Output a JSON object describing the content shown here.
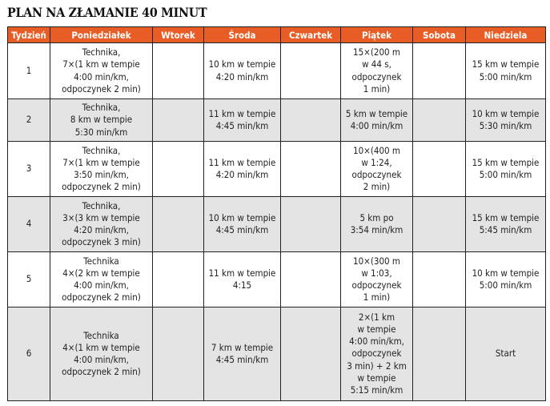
{
  "title": "PLAN NA ZŁAMANIE 40 MINUT",
  "accent_color": "#e85d26",
  "headers": [
    "Tydzień",
    "Poniedziałek",
    "Wtorek",
    "Środa",
    "Czwartek",
    "Piątek",
    "Sobota",
    "Niedziela"
  ],
  "rows": [
    [
      "1",
      "Technika,\n7×(1 km w tempie\n4:00 min/km,\nodpoczynek 2 min)",
      "",
      "10 km w tempie\n4:20 min/km",
      "",
      "15×(200 m\nw 44 s,\nodpoczynek\n1 min)",
      "",
      "15 km w tempie\n5:00 min/km"
    ],
    [
      "2",
      "Technika,\n8 km w tempie\n5:30 min/km",
      "",
      "11 km w tempie\n4:45 min/km",
      "",
      "5 km w tempie\n4:00 min/km",
      "",
      "10 km w tempie\n5:30 min/km"
    ],
    [
      "3",
      "Technika,\n7×(1 km w tempie\n3:50 min/km,\nodpoczynek 2 min)",
      "",
      "11 km w tempie\n4:20 min/km",
      "",
      "10×(400 m\nw 1:24,\nodpoczynek\n2 min)",
      "",
      "15 km w tempie\n5:00 min/km"
    ],
    [
      "4",
      "Technika,\n3×(3 km w tempie\n4:20 min/km,\nodpoczynek 3 min)",
      "",
      "10 km w tempie\n4:45 min/km",
      "",
      "5 km po\n3:54 min/km",
      "",
      "15 km w tempie\n5:45 min/km"
    ],
    [
      "5",
      "Technika\n4×(2 km w tempie\n4:00 min/km,\nodpoczynek 2 min)",
      "",
      "11 km w tempie\n4:15",
      "",
      "10×(300 m\nw 1:03,\nodpoczynek\n1 min)",
      "",
      "10 km w tempie\n5:00 min/km"
    ],
    [
      "6",
      "Technika\n4×(1 km w tempie\n4:00 min/km,\nodpoczynek 2 min)",
      "",
      "7 km w tempie\n4:45 min/km",
      "",
      "2×(1 km\nw tempie\n4:00 min/km,\nodpoczynek\n3 min) + 2 km\nw tempie\n5:15 min/km",
      "",
      "Start"
    ]
  ]
}
